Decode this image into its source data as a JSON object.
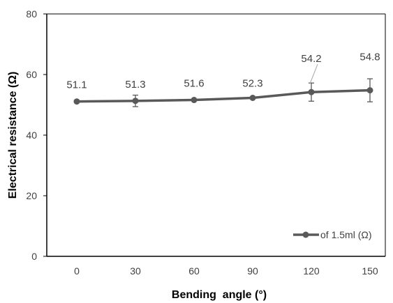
{
  "chart_data": {
    "type": "line",
    "x": [
      0,
      30,
      60,
      90,
      120,
      150
    ],
    "series": [
      {
        "name": "of 1.5ml (Ω)",
        "values": [
          51.1,
          51.3,
          51.6,
          52.3,
          54.2,
          54.8
        ],
        "error": [
          null,
          1.9,
          null,
          null,
          3.0,
          3.8
        ],
        "labels": [
          "51.1",
          "51.3",
          "51.6",
          "52.3",
          "54.2",
          "54.8"
        ]
      }
    ],
    "x_tick_labels": [
      "0",
      "30",
      "60",
      "90",
      "120",
      "150"
    ],
    "y_tick_labels": [
      "0",
      "20",
      "40",
      "60",
      "80"
    ],
    "y_ticks": [
      0,
      20,
      40,
      60,
      80
    ],
    "xlabel": "Bending  angle (°)",
    "ylabel": "Electrical resistance (Ω)",
    "ylim": [
      0,
      80
    ],
    "grid": false,
    "legend_position": "bottom-right",
    "colors": {
      "series": "#595959",
      "axis": "#000000",
      "text": "#404040"
    }
  }
}
